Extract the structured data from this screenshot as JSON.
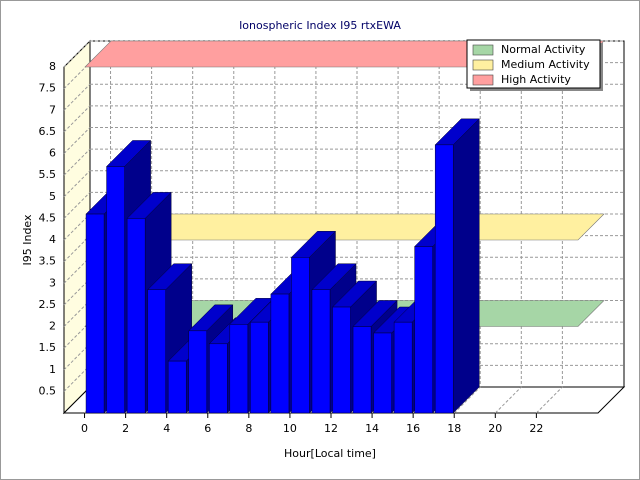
{
  "chart_data": {
    "type": "bar3d",
    "title": "Ionospheric Index I95 rtxEWA",
    "x_label": "Hour[Local time]",
    "y_label": "I95 Index",
    "x": [
      0,
      1,
      2,
      3,
      4,
      5,
      6,
      7,
      8,
      9,
      10,
      11,
      12,
      13,
      14,
      15,
      16,
      17
    ],
    "values": [
      4.6,
      5.7,
      4.5,
      2.85,
      1.2,
      1.9,
      1.6,
      2.05,
      2.1,
      2.75,
      3.6,
      2.85,
      2.45,
      2.0,
      1.85,
      2.1,
      3.85,
      6.2
    ],
    "color": "#0000ff",
    "xlim": [
      -1,
      25
    ],
    "xticks": [
      0,
      2,
      4,
      6,
      8,
      10,
      12,
      14,
      16,
      18,
      20,
      22
    ],
    "ylim": [
      0,
      8
    ],
    "yticks": [
      0.5,
      1,
      1.5,
      2,
      2.5,
      3,
      3.5,
      4,
      4.5,
      5,
      5.5,
      6,
      6.5,
      7,
      7.5,
      8
    ],
    "grid": true,
    "bands": [
      {
        "name": "Normal Activity",
        "color": "#a6d6a6",
        "value": 2
      },
      {
        "name": "Medium Activity",
        "color": "#fff0a0",
        "value": 4
      },
      {
        "name": "High Activity",
        "color": "#ff9f9f",
        "value": 8
      }
    ],
    "legend": "top-right"
  }
}
